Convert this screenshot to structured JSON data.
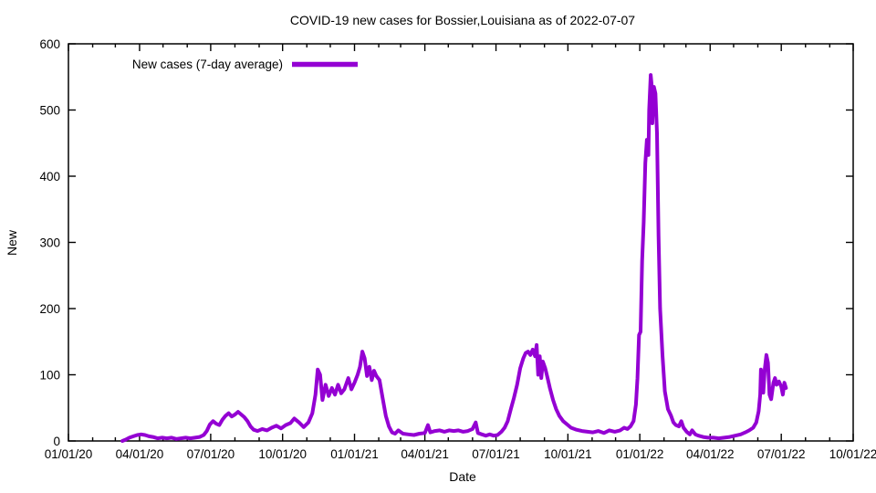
{
  "chart_data": {
    "type": "line",
    "title": "COVID-19 new cases for Bossier,Louisiana as of 2022-07-07",
    "xlabel": "Date",
    "ylabel": "New",
    "x_range": [
      "2020-01-01",
      "2022-10-01"
    ],
    "ylim": [
      0,
      600
    ],
    "grid": false,
    "legend_position": "top-left-inside",
    "line_color": "#9400d3",
    "x_ticks": [
      {
        "label": "01/01/20",
        "date": "2020-01-01"
      },
      {
        "label": "04/01/20",
        "date": "2020-04-01"
      },
      {
        "label": "07/01/20",
        "date": "2020-07-01"
      },
      {
        "label": "10/01/20",
        "date": "2020-10-01"
      },
      {
        "label": "01/01/21",
        "date": "2021-01-01"
      },
      {
        "label": "04/01/21",
        "date": "2021-04-01"
      },
      {
        "label": "07/01/21",
        "date": "2021-07-01"
      },
      {
        "label": "10/01/21",
        "date": "2021-10-01"
      },
      {
        "label": "01/01/22",
        "date": "2022-01-01"
      },
      {
        "label": "04/01/22",
        "date": "2022-04-01"
      },
      {
        "label": "07/01/22",
        "date": "2022-07-01"
      },
      {
        "label": "10/01/22",
        "date": "2022-10-01"
      }
    ],
    "y_ticks": [
      0,
      100,
      200,
      300,
      400,
      500,
      600
    ],
    "series": [
      {
        "name": "New cases (7-day average)",
        "color": "#9400d3",
        "points": [
          [
            "2020-03-10",
            0
          ],
          [
            "2020-03-14",
            2
          ],
          [
            "2020-03-19",
            5
          ],
          [
            "2020-03-24",
            7
          ],
          [
            "2020-03-29",
            9
          ],
          [
            "2020-04-03",
            10
          ],
          [
            "2020-04-08",
            9
          ],
          [
            "2020-04-13",
            7
          ],
          [
            "2020-04-18",
            6
          ],
          [
            "2020-04-24",
            4
          ],
          [
            "2020-04-30",
            5
          ],
          [
            "2020-05-06",
            4
          ],
          [
            "2020-05-12",
            5
          ],
          [
            "2020-05-18",
            3
          ],
          [
            "2020-05-24",
            4
          ],
          [
            "2020-05-30",
            5
          ],
          [
            "2020-06-05",
            4
          ],
          [
            "2020-06-11",
            5
          ],
          [
            "2020-06-17",
            6
          ],
          [
            "2020-06-22",
            9
          ],
          [
            "2020-06-26",
            15
          ],
          [
            "2020-06-30",
            25
          ],
          [
            "2020-07-04",
            30
          ],
          [
            "2020-07-08",
            26
          ],
          [
            "2020-07-12",
            24
          ],
          [
            "2020-07-16",
            32
          ],
          [
            "2020-07-20",
            38
          ],
          [
            "2020-07-24",
            42
          ],
          [
            "2020-07-28",
            37
          ],
          [
            "2020-08-01",
            40
          ],
          [
            "2020-08-05",
            44
          ],
          [
            "2020-08-09",
            40
          ],
          [
            "2020-08-13",
            36
          ],
          [
            "2020-08-17",
            30
          ],
          [
            "2020-08-21",
            22
          ],
          [
            "2020-08-25",
            17
          ],
          [
            "2020-08-30",
            15
          ],
          [
            "2020-09-05",
            18
          ],
          [
            "2020-09-11",
            16
          ],
          [
            "2020-09-17",
            20
          ],
          [
            "2020-09-23",
            23
          ],
          [
            "2020-09-29",
            19
          ],
          [
            "2020-10-05",
            24
          ],
          [
            "2020-10-11",
            27
          ],
          [
            "2020-10-16",
            34
          ],
          [
            "2020-10-22",
            28
          ],
          [
            "2020-10-28",
            21
          ],
          [
            "2020-11-03",
            28
          ],
          [
            "2020-11-08",
            42
          ],
          [
            "2020-11-12",
            70
          ],
          [
            "2020-11-15",
            108
          ],
          [
            "2020-11-18",
            100
          ],
          [
            "2020-11-21",
            62
          ],
          [
            "2020-11-25",
            85
          ],
          [
            "2020-11-29",
            68
          ],
          [
            "2020-12-03",
            80
          ],
          [
            "2020-12-07",
            70
          ],
          [
            "2020-12-11",
            85
          ],
          [
            "2020-12-15",
            72
          ],
          [
            "2020-12-19",
            78
          ],
          [
            "2020-12-24",
            95
          ],
          [
            "2020-12-28",
            78
          ],
          [
            "2021-01-01",
            88
          ],
          [
            "2021-01-05",
            100
          ],
          [
            "2021-01-08",
            112
          ],
          [
            "2021-01-11",
            135
          ],
          [
            "2021-01-14",
            125
          ],
          [
            "2021-01-17",
            98
          ],
          [
            "2021-01-20",
            112
          ],
          [
            "2021-01-23",
            92
          ],
          [
            "2021-01-26",
            106
          ],
          [
            "2021-01-29",
            98
          ],
          [
            "2021-02-02",
            92
          ],
          [
            "2021-02-06",
            65
          ],
          [
            "2021-02-10",
            38
          ],
          [
            "2021-02-14",
            22
          ],
          [
            "2021-02-18",
            13
          ],
          [
            "2021-02-22",
            11
          ],
          [
            "2021-02-26",
            16
          ],
          [
            "2021-03-04",
            11
          ],
          [
            "2021-03-11",
            10
          ],
          [
            "2021-03-18",
            9
          ],
          [
            "2021-03-25",
            11
          ],
          [
            "2021-04-01",
            12
          ],
          [
            "2021-04-05",
            24
          ],
          [
            "2021-04-08",
            13
          ],
          [
            "2021-04-14",
            15
          ],
          [
            "2021-04-20",
            16
          ],
          [
            "2021-04-26",
            14
          ],
          [
            "2021-05-02",
            16
          ],
          [
            "2021-05-08",
            15
          ],
          [
            "2021-05-14",
            16
          ],
          [
            "2021-05-20",
            14
          ],
          [
            "2021-05-26",
            15
          ],
          [
            "2021-06-01",
            18
          ],
          [
            "2021-06-05",
            28
          ],
          [
            "2021-06-08",
            12
          ],
          [
            "2021-06-13",
            10
          ],
          [
            "2021-06-18",
            8
          ],
          [
            "2021-06-23",
            10
          ],
          [
            "2021-06-28",
            8
          ],
          [
            "2021-07-03",
            9
          ],
          [
            "2021-07-08",
            14
          ],
          [
            "2021-07-12",
            20
          ],
          [
            "2021-07-16",
            30
          ],
          [
            "2021-07-20",
            48
          ],
          [
            "2021-07-24",
            65
          ],
          [
            "2021-07-28",
            85
          ],
          [
            "2021-08-01",
            110
          ],
          [
            "2021-08-05",
            125
          ],
          [
            "2021-08-08",
            133
          ],
          [
            "2021-08-11",
            135
          ],
          [
            "2021-08-14",
            130
          ],
          [
            "2021-08-17",
            138
          ],
          [
            "2021-08-20",
            128
          ],
          [
            "2021-08-22",
            145
          ],
          [
            "2021-08-24",
            100
          ],
          [
            "2021-08-26",
            128
          ],
          [
            "2021-08-28",
            95
          ],
          [
            "2021-08-30",
            120
          ],
          [
            "2021-09-02",
            110
          ],
          [
            "2021-09-05",
            95
          ],
          [
            "2021-09-08",
            80
          ],
          [
            "2021-09-12",
            62
          ],
          [
            "2021-09-16",
            48
          ],
          [
            "2021-09-20",
            38
          ],
          [
            "2021-09-25",
            30
          ],
          [
            "2021-09-30",
            25
          ],
          [
            "2021-10-05",
            20
          ],
          [
            "2021-10-12",
            17
          ],
          [
            "2021-10-19",
            15
          ],
          [
            "2021-10-26",
            14
          ],
          [
            "2021-11-02",
            13
          ],
          [
            "2021-11-09",
            15
          ],
          [
            "2021-11-16",
            12
          ],
          [
            "2021-11-23",
            16
          ],
          [
            "2021-11-30",
            14
          ],
          [
            "2021-12-07",
            16
          ],
          [
            "2021-12-12",
            20
          ],
          [
            "2021-12-16",
            18
          ],
          [
            "2021-12-20",
            22
          ],
          [
            "2021-12-24",
            30
          ],
          [
            "2021-12-27",
            55
          ],
          [
            "2021-12-29",
            95
          ],
          [
            "2021-12-31",
            160
          ],
          [
            "2022-01-02",
            165
          ],
          [
            "2022-01-04",
            272
          ],
          [
            "2022-01-06",
            330
          ],
          [
            "2022-01-08",
            420
          ],
          [
            "2022-01-10",
            455
          ],
          [
            "2022-01-12",
            432
          ],
          [
            "2022-01-13",
            500
          ],
          [
            "2022-01-15",
            553
          ],
          [
            "2022-01-16",
            540
          ],
          [
            "2022-01-17",
            480
          ],
          [
            "2022-01-19",
            535
          ],
          [
            "2022-01-21",
            525
          ],
          [
            "2022-01-23",
            465
          ],
          [
            "2022-01-25",
            310
          ],
          [
            "2022-01-27",
            200
          ],
          [
            "2022-01-30",
            130
          ],
          [
            "2022-02-02",
            75
          ],
          [
            "2022-02-06",
            48
          ],
          [
            "2022-02-10",
            38
          ],
          [
            "2022-02-13",
            28
          ],
          [
            "2022-02-16",
            24
          ],
          [
            "2022-02-20",
            22
          ],
          [
            "2022-02-23",
            30
          ],
          [
            "2022-02-26",
            20
          ],
          [
            "2022-03-02",
            14
          ],
          [
            "2022-03-06",
            10
          ],
          [
            "2022-03-09",
            16
          ],
          [
            "2022-03-13",
            10
          ],
          [
            "2022-03-17",
            8
          ],
          [
            "2022-03-23",
            6
          ],
          [
            "2022-03-29",
            5
          ],
          [
            "2022-04-05",
            5
          ],
          [
            "2022-04-12",
            4
          ],
          [
            "2022-04-19",
            5
          ],
          [
            "2022-04-26",
            6
          ],
          [
            "2022-05-03",
            8
          ],
          [
            "2022-05-10",
            10
          ],
          [
            "2022-05-16",
            13
          ],
          [
            "2022-05-21",
            16
          ],
          [
            "2022-05-26",
            20
          ],
          [
            "2022-05-30",
            28
          ],
          [
            "2022-06-02",
            45
          ],
          [
            "2022-06-04",
            70
          ],
          [
            "2022-06-05",
            108
          ],
          [
            "2022-06-07",
            95
          ],
          [
            "2022-06-08",
            73
          ],
          [
            "2022-06-10",
            110
          ],
          [
            "2022-06-12",
            130
          ],
          [
            "2022-06-14",
            118
          ],
          [
            "2022-06-16",
            70
          ],
          [
            "2022-06-18",
            63
          ],
          [
            "2022-06-21",
            88
          ],
          [
            "2022-06-23",
            95
          ],
          [
            "2022-06-25",
            85
          ],
          [
            "2022-06-28",
            90
          ],
          [
            "2022-07-01",
            82
          ],
          [
            "2022-07-03",
            70
          ],
          [
            "2022-07-05",
            88
          ],
          [
            "2022-07-07",
            80
          ]
        ]
      }
    ]
  }
}
